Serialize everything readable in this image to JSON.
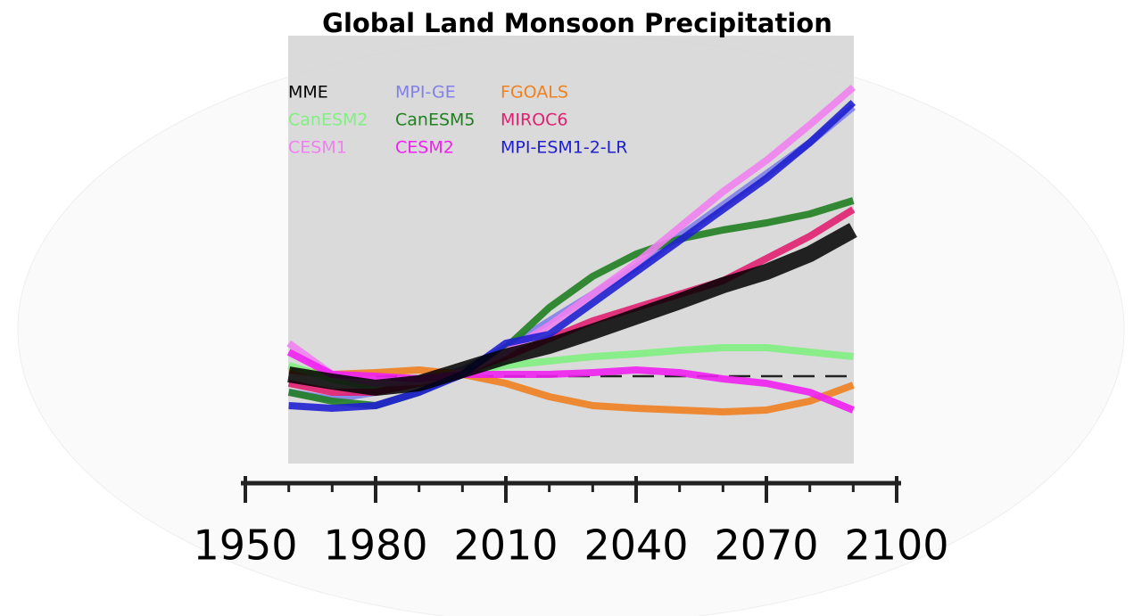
{
  "chart_data": {
    "type": "line",
    "title": "Global Land Monsoon Precipitation",
    "x": [
      1960,
      1970,
      1980,
      1990,
      2000,
      2010,
      2020,
      2030,
      2040,
      2050,
      2060,
      2070,
      2080,
      2090
    ],
    "xlim": [
      1950,
      2100
    ],
    "xticks": [
      1950,
      1980,
      2010,
      2040,
      2070,
      2100
    ],
    "xminorticks": [
      1960,
      1970,
      1990,
      2000,
      2020,
      2030,
      2050,
      2060,
      2080,
      2090
    ],
    "ylim": [
      -10,
      38
    ],
    "reference_line": 0,
    "series": [
      {
        "name": "MME",
        "color": "#000000",
        "values": [
          0.2,
          -0.6,
          -1.3,
          -0.8,
          0.7,
          2.2,
          3.4,
          5.0,
          6.7,
          8.4,
          10.2,
          11.7,
          13.7,
          16.4
        ]
      },
      {
        "name": "MPI-GE",
        "color": "#8080e8",
        "values": [
          -1.8,
          -2.6,
          -1.8,
          -0.6,
          0.7,
          3.2,
          6.2,
          9.2,
          12.2,
          15.7,
          19.2,
          22.7,
          26.2,
          30.2
        ]
      },
      {
        "name": "FGOALS",
        "color": "#f08020",
        "values": [
          0.7,
          0.2,
          0.4,
          0.7,
          0.2,
          -0.8,
          -2.3,
          -3.3,
          -3.6,
          -3.8,
          -4.0,
          -3.8,
          -2.8,
          -1.0
        ]
      },
      {
        "name": "CanESM2",
        "color": "#80f080",
        "values": [
          1.2,
          -0.3,
          -1.3,
          -0.8,
          0.4,
          1.2,
          1.7,
          2.2,
          2.5,
          2.9,
          3.2,
          3.2,
          2.7,
          2.2
        ]
      },
      {
        "name": "CanESM5",
        "color": "#208020",
        "values": [
          -1.8,
          -2.8,
          -3.3,
          -1.8,
          0.4,
          3.2,
          7.7,
          11.2,
          13.7,
          15.4,
          16.4,
          17.2,
          18.2,
          19.7
        ]
      },
      {
        "name": "MIROC6",
        "color": "#e02070",
        "values": [
          -0.8,
          -1.8,
          -1.8,
          -0.8,
          0.4,
          2.2,
          4.2,
          6.2,
          7.7,
          9.2,
          10.7,
          13.2,
          15.7,
          18.7
        ]
      },
      {
        "name": "CESM1",
        "color": "#f080f0",
        "values": [
          3.7,
          0.2,
          -0.8,
          -0.6,
          0.4,
          2.7,
          5.7,
          9.2,
          12.7,
          16.7,
          20.7,
          24.2,
          28.2,
          32.4
        ]
      },
      {
        "name": "CESM2",
        "color": "#f020f0",
        "values": [
          2.7,
          0.2,
          0.0,
          -0.3,
          0.2,
          0.2,
          0.2,
          0.4,
          0.7,
          0.4,
          -0.3,
          -0.8,
          -1.8,
          -3.8
        ]
      },
      {
        "name": "MPI-ESM1-2-LR",
        "color": "#2020d0",
        "values": [
          -3.3,
          -3.6,
          -3.3,
          -1.8,
          0.2,
          3.7,
          4.7,
          8.2,
          11.7,
          15.2,
          18.7,
          22.2,
          26.2,
          30.7
        ]
      }
    ]
  }
}
